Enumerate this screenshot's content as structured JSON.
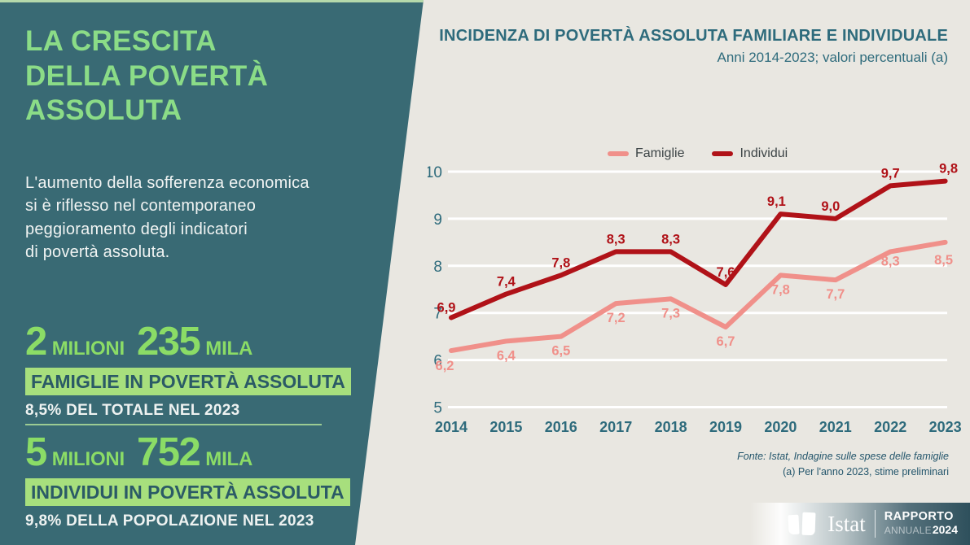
{
  "left_panel": {
    "title": "LA CRESCITA\nDELLA POVERTÀ\nASSOLUTA",
    "intro": "L'aumento della sofferenza economica\nsi è riflesso nel contemporaneo\npeggioramento degli indicatori\ndi povertà assoluta.",
    "stats": [
      {
        "value_millions": "2",
        "unit_millions": "MILIONI",
        "value_thousands": "235",
        "unit_thousands": "MILA",
        "highlight": "FAMIGLIE IN POVERTÀ ASSOLUTA",
        "detail": "8,5% DEL TOTALE NEL 2023"
      },
      {
        "value_millions": "5",
        "unit_millions": "MILIONI",
        "value_thousands": "752",
        "unit_thousands": "MILA",
        "highlight": "INDIVIDUI IN POVERTÀ ASSOLUTA",
        "detail": "9,8% DELLA POPOLAZIONE NEL 2023"
      }
    ]
  },
  "chart": {
    "title": "INCIDENZA DI POVERTÀ ASSOLUTA FAMILIARE E INDIVIDUALE",
    "subtitle": "Anni 2014-2023; valori percentuali (a)",
    "source_line1": "Fonte: Istat, Indagine sulle spese delle famiglie",
    "source_line2": "(a) Per l'anno 2023, stime preliminari"
  },
  "chart_data": {
    "type": "line",
    "categories": [
      "2014",
      "2015",
      "2016",
      "2017",
      "2018",
      "2019",
      "2020",
      "2021",
      "2022",
      "2023"
    ],
    "series": [
      {
        "name": "Famiglie",
        "color": "#f0908a",
        "label_position": "below",
        "values": [
          6.2,
          6.4,
          6.5,
          7.2,
          7.3,
          6.7,
          7.8,
          7.7,
          8.3,
          8.5
        ]
      },
      {
        "name": "Individui",
        "color": "#b01218",
        "label_position": "above",
        "values": [
          6.9,
          7.4,
          7.8,
          8.3,
          8.3,
          7.6,
          9.1,
          9.0,
          9.7,
          9.8
        ]
      }
    ],
    "ylim": [
      5,
      10
    ],
    "yticks": [
      5,
      6,
      7,
      8,
      9,
      10
    ],
    "grid": "horizontal-white",
    "legend_position": "top-center",
    "value_label_decimal": "comma",
    "title": "INCIDENZA DI POVERTÀ ASSOLUTA FAMILIARE E INDIVIDUALE",
    "xlabel": "",
    "ylabel": "valori percentuali"
  },
  "footer_logo": {
    "brand": "Istat",
    "report_line1": "RAPPORTO",
    "report_line2a": "ANNUALE",
    "report_line2b": "2024"
  },
  "colors": {
    "left_panel_bg": "#396a74",
    "title_green": "#8bdc87",
    "highlight_green": "#a7df7d",
    "highlight_text": "#2b5a66",
    "right_panel_bg": "#e9e7e1",
    "chart_teal": "#2e6b7c",
    "famiglie_line": "#f0908a",
    "individui_line": "#b01218",
    "source_text": "#24566c"
  }
}
